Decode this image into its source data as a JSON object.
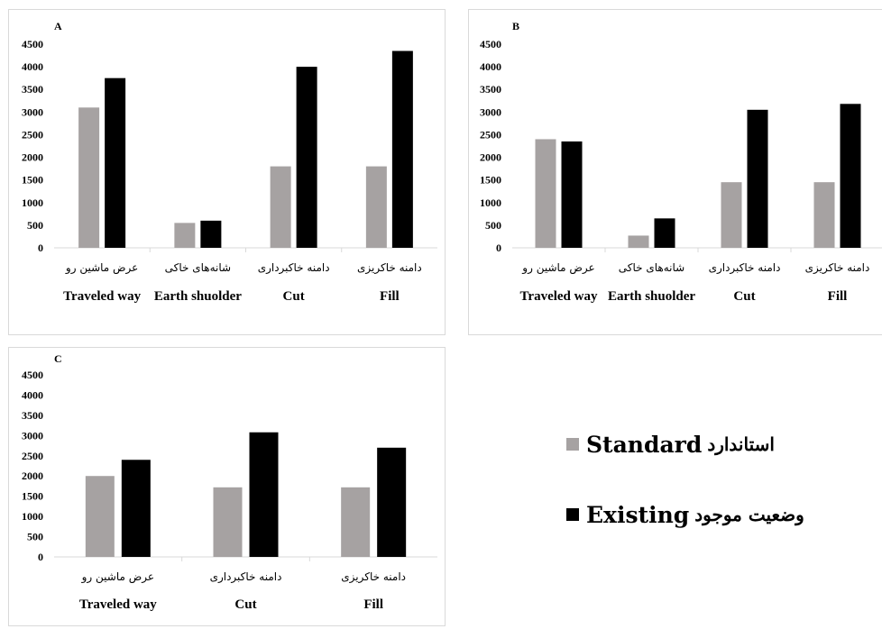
{
  "colors": {
    "standard": "#a6a2a2",
    "existing": "#000000",
    "axis": "#d9d9d9",
    "text": "#000000"
  },
  "legend": {
    "standard_en": "Standard",
    "standard_fa": "استاندارد",
    "existing_en": "Existing",
    "existing_fa": "وضعیت موجود"
  },
  "chart_data": [
    {
      "type": "bar",
      "panel_label": "A",
      "ylim": [
        0,
        4500
      ],
      "yticks": [
        "0",
        "500",
        "1000",
        "1500",
        "2000",
        "2500",
        "3000",
        "3500",
        "4000",
        "4500"
      ],
      "categories": [
        "Traveled way",
        "Earth shuolder",
        "Cut",
        "Fill"
      ],
      "categories_fa": [
        "عرض ماشین رو",
        "شانه‌های خاکی",
        "دامنه خاکبرداری",
        "دامنه خاکریزی"
      ],
      "series": [
        {
          "name": "Standard",
          "values": [
            3100,
            550,
            1800,
            1800
          ]
        },
        {
          "name": "Existing",
          "values": [
            3750,
            600,
            4000,
            4350
          ]
        }
      ]
    },
    {
      "type": "bar",
      "panel_label": "B",
      "ylim": [
        0,
        4500
      ],
      "yticks": [
        "0",
        "500",
        "1000",
        "1500",
        "2000",
        "2500",
        "3000",
        "3500",
        "4000",
        "4500"
      ],
      "categories": [
        "Traveled way",
        "Earth shuolder",
        "Cut",
        "Fill"
      ],
      "categories_fa": [
        "عرض ماشین رو",
        "شانه‌های خاکی",
        "دامنه خاکبرداری",
        "دامنه خاکریزی"
      ],
      "series": [
        {
          "name": "Standard",
          "values": [
            2400,
            270,
            1450,
            1450
          ]
        },
        {
          "name": "Existing",
          "values": [
            2350,
            650,
            3050,
            3180
          ]
        }
      ]
    },
    {
      "type": "bar",
      "panel_label": "C",
      "ylim": [
        0,
        4500
      ],
      "yticks": [
        "0",
        "500",
        "1000",
        "1500",
        "2000",
        "2500",
        "3000",
        "3500",
        "4000",
        "4500"
      ],
      "categories": [
        "Traveled way",
        "Cut",
        "Fill"
      ],
      "categories_fa": [
        "عرض ماشین رو",
        "دامنه خاکبرداری",
        "دامنه خاکریزی"
      ],
      "series": [
        {
          "name": "Standard",
          "values": [
            2000,
            1720,
            1720
          ]
        },
        {
          "name": "Existing",
          "values": [
            2400,
            3080,
            2700
          ]
        }
      ]
    }
  ]
}
